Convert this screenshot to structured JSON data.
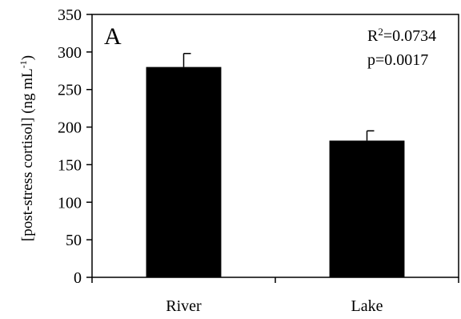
{
  "chart_data": {
    "type": "bar",
    "panel_label": "A",
    "categories": [
      "River",
      "Lake"
    ],
    "values": [
      280,
      182
    ],
    "errors": [
      18,
      13
    ],
    "ylabel": {
      "prefix": "[post-stress cortisol] (ng mL",
      "sup": "-1",
      "suffix": ")"
    },
    "ylim": [
      0,
      350
    ],
    "yticks": [
      0,
      50,
      100,
      150,
      200,
      250,
      300,
      350
    ],
    "annotations": {
      "r2_prefix": "R",
      "r2_sup": "2",
      "r2_value": "=0.0734",
      "p": "p=0.0017"
    },
    "grid": false,
    "bar_color": "#000000"
  }
}
